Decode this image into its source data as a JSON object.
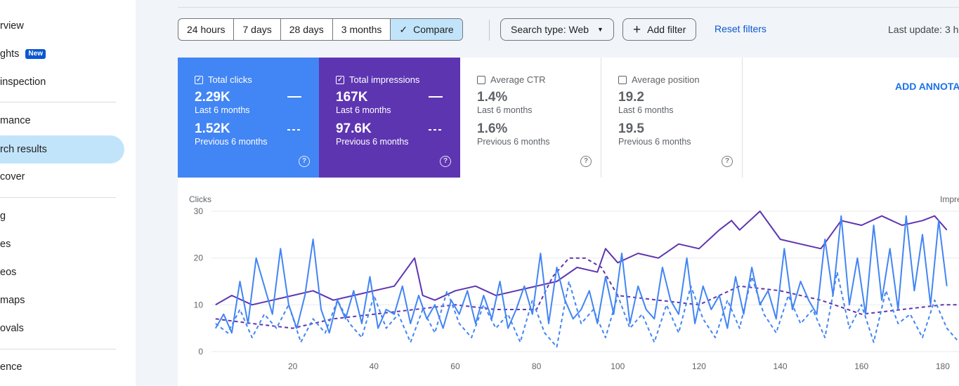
{
  "sidebar": {
    "items": [
      {
        "label": "rview",
        "active": false
      },
      {
        "label": "ghts",
        "badge": "New",
        "active": false
      },
      {
        "label": " inspection",
        "active": false
      },
      {
        "label": "mance",
        "active": false
      },
      {
        "label": "rch results",
        "active": true
      },
      {
        "label": "cover",
        "active": false
      },
      {
        "label": "g",
        "active": false
      },
      {
        "label": "es",
        "active": false
      },
      {
        "label": "eos",
        "active": false
      },
      {
        "label": "maps",
        "active": false
      },
      {
        "label": "ovals",
        "active": false
      },
      {
        "label": "ence",
        "active": false
      }
    ]
  },
  "toolbar": {
    "date_ranges": [
      "24 hours",
      "7 days",
      "28 days",
      "3 months",
      "Compare"
    ],
    "selected_range": "Compare",
    "search_type": "Search type: Web",
    "add_filter": "Add filter",
    "reset_filters": "Reset filters",
    "last_update": "Last update: 3 h"
  },
  "metrics": [
    {
      "label": "Total clicks",
      "checked": true,
      "value": "2.29K",
      "period": "Last 6 months",
      "prev_value": "1.52K",
      "prev_period": "Previous 6 months",
      "color": "#4285f4"
    },
    {
      "label": "Total impressions",
      "checked": true,
      "value": "167K",
      "period": "Last 6 months",
      "prev_value": "97.6K",
      "prev_period": "Previous 6 months",
      "color": "#5e35b1"
    },
    {
      "label": "Average CTR",
      "checked": false,
      "value": "1.4%",
      "period": "Last 6 months",
      "prev_value": "1.6%",
      "prev_period": "Previous 6 months"
    },
    {
      "label": "Average position",
      "checked": false,
      "value": "19.2",
      "period": "Last 6 months",
      "prev_value": "19.5",
      "prev_period": "Previous 6 months"
    }
  ],
  "add_annotation": "ADD ANNOTAT",
  "chart_data": {
    "type": "line",
    "ylabel_left": "Clicks",
    "ylabel_right": "Impre",
    "ylim": [
      0,
      30
    ],
    "yticks": [
      0,
      10,
      20,
      30
    ],
    "xticks": [
      20,
      40,
      60,
      80,
      100,
      120,
      140,
      160,
      180
    ],
    "xlim": [
      0,
      184
    ],
    "grid": true,
    "series": [
      {
        "name": "Total impressions (Last 6 months)",
        "color": "#5e35b1",
        "style": "solid",
        "x": [
          1,
          5,
          10,
          15,
          20,
          25,
          30,
          35,
          40,
          45,
          50,
          52,
          55,
          60,
          65,
          70,
          75,
          80,
          85,
          90,
          95,
          97,
          100,
          105,
          110,
          115,
          120,
          125,
          128,
          130,
          135,
          140,
          145,
          150,
          155,
          160,
          165,
          170,
          175,
          178,
          181
        ],
        "values": [
          10,
          12,
          10,
          11,
          12,
          13,
          11,
          12,
          13,
          14,
          20,
          12,
          11,
          13,
          14,
          12,
          13,
          14,
          15,
          18,
          17,
          22,
          19,
          21,
          20,
          23,
          22,
          26,
          28,
          26,
          30,
          24,
          23,
          22,
          28,
          27,
          29,
          27,
          28,
          29,
          26
        ]
      },
      {
        "name": "Total impressions (Previous 6 months)",
        "color": "#5e35b1",
        "style": "dashed",
        "x": [
          1,
          10,
          20,
          30,
          40,
          50,
          60,
          70,
          80,
          84,
          88,
          92,
          96,
          100,
          110,
          120,
          130,
          140,
          150,
          160,
          170,
          180,
          184
        ],
        "values": [
          7,
          6,
          5,
          7,
          8,
          9,
          10,
          9,
          9,
          16,
          20,
          20,
          18,
          12,
          11,
          10,
          14,
          13,
          11,
          8,
          9,
          10,
          10
        ]
      },
      {
        "name": "Total clicks (Last 6 months)",
        "color": "#4285f4",
        "style": "solid",
        "x": [
          1,
          3,
          5,
          7,
          9,
          11,
          13,
          15,
          17,
          19,
          21,
          23,
          25,
          27,
          29,
          31,
          33,
          35,
          37,
          39,
          41,
          43,
          45,
          47,
          49,
          51,
          53,
          55,
          57,
          59,
          61,
          63,
          65,
          67,
          69,
          71,
          73,
          75,
          77,
          79,
          81,
          83,
          85,
          87,
          89,
          91,
          93,
          95,
          97,
          99,
          101,
          103,
          105,
          107,
          109,
          111,
          113,
          115,
          117,
          119,
          121,
          123,
          125,
          127,
          129,
          131,
          133,
          135,
          137,
          139,
          141,
          143,
          145,
          147,
          149,
          151,
          153,
          155,
          157,
          159,
          161,
          163,
          165,
          167,
          169,
          171,
          173,
          175,
          177,
          179,
          181
        ],
        "values": [
          5,
          8,
          4,
          15,
          6,
          20,
          14,
          8,
          22,
          10,
          5,
          12,
          24,
          9,
          4,
          11,
          7,
          13,
          6,
          16,
          5,
          9,
          8,
          14,
          6,
          12,
          7,
          10,
          5,
          11,
          8,
          13,
          6,
          12,
          7,
          15,
          5,
          9,
          14,
          8,
          21,
          6,
          18,
          11,
          7,
          9,
          13,
          6,
          16,
          8,
          21,
          6,
          14,
          9,
          7,
          18,
          11,
          8,
          20,
          6,
          14,
          9,
          12,
          5,
          16,
          8,
          18,
          10,
          13,
          7,
          22,
          9,
          15,
          11,
          8,
          24,
          12,
          29,
          10,
          20,
          8,
          27,
          11,
          22,
          9,
          29,
          13,
          25,
          10,
          28,
          14
        ]
      },
      {
        "name": "Total clicks (Previous 6 months)",
        "color": "#4285f4",
        "style": "dashed",
        "x": [
          1,
          4,
          7,
          10,
          13,
          16,
          19,
          22,
          25,
          28,
          31,
          34,
          37,
          40,
          43,
          46,
          49,
          52,
          55,
          58,
          61,
          64,
          67,
          70,
          73,
          76,
          79,
          82,
          85,
          88,
          91,
          94,
          97,
          100,
          103,
          106,
          109,
          112,
          115,
          118,
          121,
          124,
          127,
          130,
          133,
          136,
          139,
          142,
          145,
          148,
          151,
          154,
          157,
          160,
          163,
          166,
          169,
          172,
          175,
          178,
          181,
          184
        ],
        "values": [
          6,
          4,
          9,
          3,
          8,
          5,
          10,
          2,
          7,
          4,
          11,
          6,
          3,
          12,
          5,
          8,
          2,
          9,
          4,
          13,
          6,
          3,
          10,
          5,
          8,
          2,
          11,
          4,
          1,
          15,
          6,
          9,
          3,
          12,
          5,
          8,
          2,
          10,
          4,
          14,
          7,
          3,
          11,
          5,
          16,
          8,
          4,
          12,
          6,
          9,
          3,
          17,
          5,
          10,
          2,
          13,
          6,
          8,
          3,
          11,
          5,
          2
        ]
      }
    ]
  }
}
